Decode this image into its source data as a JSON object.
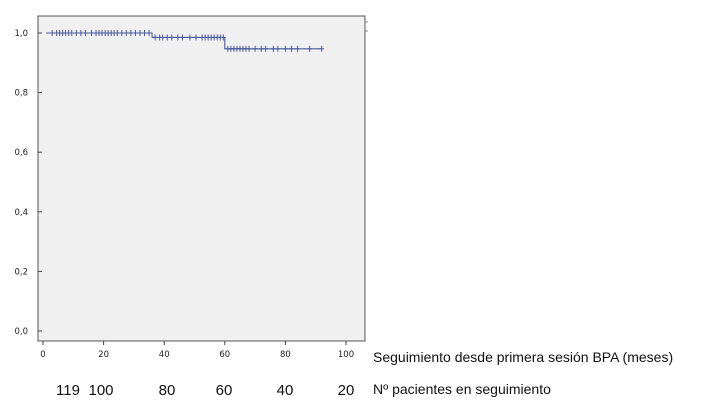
{
  "chart_data": {
    "type": "line",
    "subtype": "kaplan-meier",
    "title": "",
    "xlabel": "Seguimiento desde primera sesión BPA (meses)",
    "ylabel": "",
    "xlim": [
      0,
      100
    ],
    "ylim": [
      0.0,
      1.0
    ],
    "x_ticks": [
      0,
      20,
      40,
      60,
      80,
      100
    ],
    "y_ticks": [
      0.0,
      0.2,
      0.4,
      0.6,
      0.8,
      1.0
    ],
    "y_tick_labels": [
      "0,0",
      "0,2",
      "0,4",
      "0,6",
      "0,8",
      "1,0"
    ],
    "grid": false,
    "plot_background": "#f0f0f0",
    "series": [
      {
        "color": "#4a5a9e",
        "steps": [
          {
            "x": 1,
            "y": 1.0
          },
          {
            "x": 36,
            "y": 0.985
          },
          {
            "x": 60,
            "y": 0.947
          },
          {
            "x": 92,
            "y": 0.947
          }
        ],
        "censored": [
          {
            "x": 3,
            "y": 1.0
          },
          {
            "x": 4.5,
            "y": 1.0
          },
          {
            "x": 5.5,
            "y": 1.0
          },
          {
            "x": 6.5,
            "y": 1.0
          },
          {
            "x": 7.5,
            "y": 1.0
          },
          {
            "x": 8.5,
            "y": 1.0
          },
          {
            "x": 9.5,
            "y": 1.0
          },
          {
            "x": 11,
            "y": 1.0
          },
          {
            "x": 12.5,
            "y": 1.0
          },
          {
            "x": 14,
            "y": 1.0
          },
          {
            "x": 16,
            "y": 1.0
          },
          {
            "x": 17.5,
            "y": 1.0
          },
          {
            "x": 18.5,
            "y": 1.0
          },
          {
            "x": 19.5,
            "y": 1.0
          },
          {
            "x": 20.5,
            "y": 1.0
          },
          {
            "x": 21.5,
            "y": 1.0
          },
          {
            "x": 22.5,
            "y": 1.0
          },
          {
            "x": 23.5,
            "y": 1.0
          },
          {
            "x": 24.5,
            "y": 1.0
          },
          {
            "x": 26,
            "y": 1.0
          },
          {
            "x": 27.5,
            "y": 1.0
          },
          {
            "x": 29,
            "y": 1.0
          },
          {
            "x": 30.5,
            "y": 1.0
          },
          {
            "x": 32,
            "y": 1.0
          },
          {
            "x": 33.5,
            "y": 1.0
          },
          {
            "x": 35,
            "y": 1.0
          },
          {
            "x": 37,
            "y": 0.985
          },
          {
            "x": 38.5,
            "y": 0.985
          },
          {
            "x": 39.5,
            "y": 0.985
          },
          {
            "x": 41,
            "y": 0.985
          },
          {
            "x": 42.5,
            "y": 0.985
          },
          {
            "x": 44.5,
            "y": 0.985
          },
          {
            "x": 46,
            "y": 0.985
          },
          {
            "x": 48.5,
            "y": 0.985
          },
          {
            "x": 50.5,
            "y": 0.985
          },
          {
            "x": 52.5,
            "y": 0.985
          },
          {
            "x": 53.5,
            "y": 0.985
          },
          {
            "x": 54.5,
            "y": 0.985
          },
          {
            "x": 55.5,
            "y": 0.985
          },
          {
            "x": 56.5,
            "y": 0.985
          },
          {
            "x": 57.5,
            "y": 0.985
          },
          {
            "x": 58.5,
            "y": 0.985
          },
          {
            "x": 59.5,
            "y": 0.985
          },
          {
            "x": 61,
            "y": 0.947
          },
          {
            "x": 62,
            "y": 0.947
          },
          {
            "x": 63,
            "y": 0.947
          },
          {
            "x": 64,
            "y": 0.947
          },
          {
            "x": 65,
            "y": 0.947
          },
          {
            "x": 66,
            "y": 0.947
          },
          {
            "x": 67,
            "y": 0.947
          },
          {
            "x": 68,
            "y": 0.947
          },
          {
            "x": 70,
            "y": 0.947
          },
          {
            "x": 72,
            "y": 0.947
          },
          {
            "x": 73.5,
            "y": 0.947
          },
          {
            "x": 76,
            "y": 0.947
          },
          {
            "x": 77.5,
            "y": 0.947
          },
          {
            "x": 80,
            "y": 0.947
          },
          {
            "x": 82,
            "y": 0.947
          },
          {
            "x": 84,
            "y": 0.947
          },
          {
            "x": 88,
            "y": 0.947
          },
          {
            "x": 92,
            "y": 0.947
          }
        ]
      }
    ],
    "risk_table": {
      "label": "Nº pacientes en seguimiento",
      "values": [
        "119",
        "100",
        "80",
        "60",
        "40",
        "20"
      ]
    }
  }
}
